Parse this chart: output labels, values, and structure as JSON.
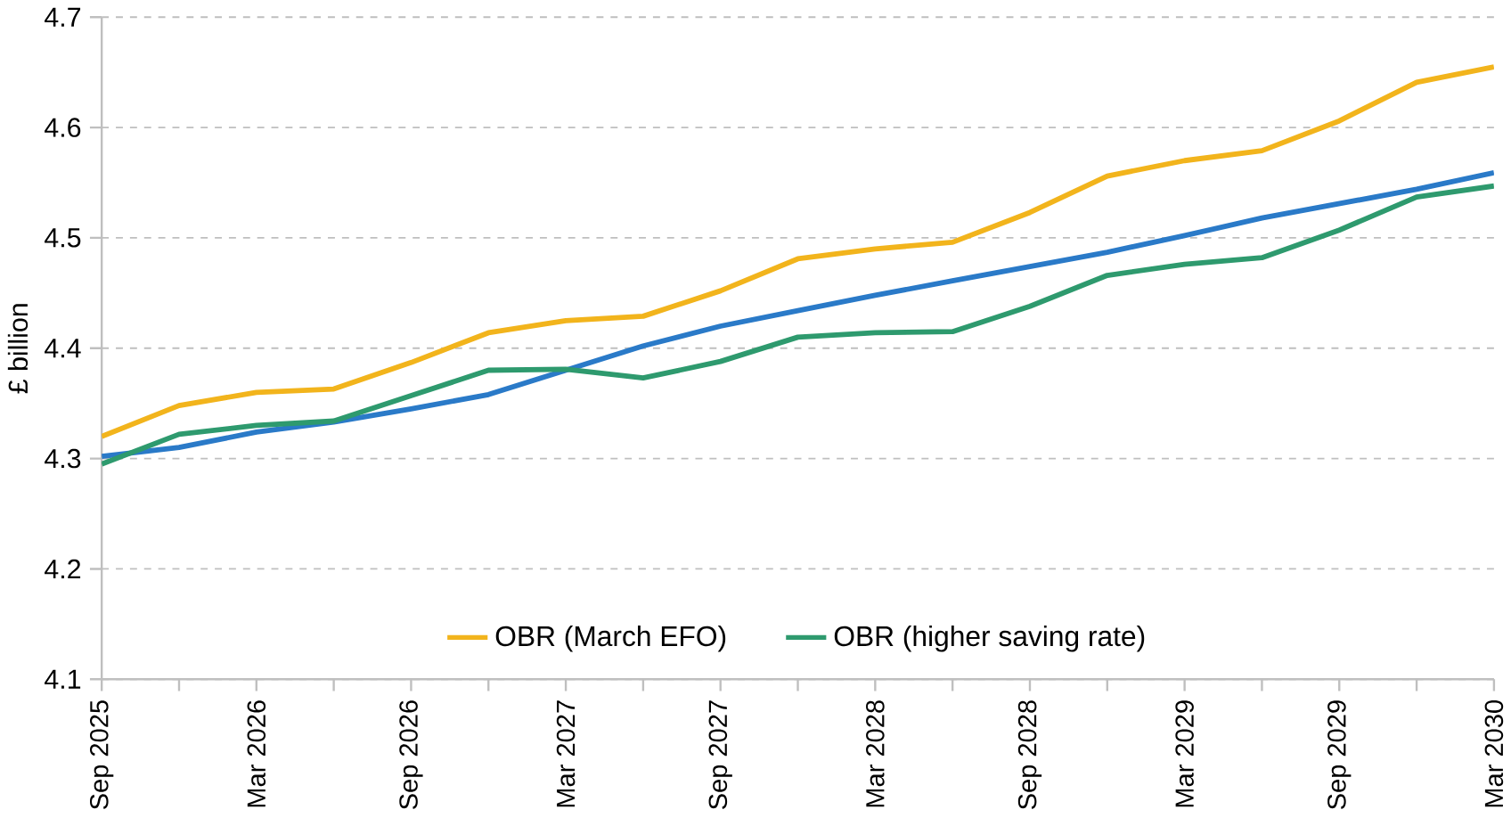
{
  "chart_data": {
    "type": "line",
    "ylabel": "£ billion",
    "categories": [
      "Sep 2025",
      null,
      "Mar 2026",
      null,
      "Sep 2026",
      null,
      "Mar 2027",
      null,
      "Sep 2027",
      null,
      "Mar 2028",
      null,
      "Sep 2028",
      null,
      "Mar 2029",
      null,
      "Sep 2029",
      null,
      "Mar 2030"
    ],
    "series": [
      {
        "color": "#2a7ac8",
        "values": [
          4.302,
          4.31,
          4.324,
          4.333,
          4.345,
          4.358,
          4.38,
          4.402,
          4.42,
          4.434,
          4.448,
          4.461,
          4.474,
          4.487,
          4.502,
          4.518,
          4.531,
          4.544,
          4.559
        ]
      },
      {
        "name": "OBR (March EFO)",
        "color": "#f2b41c",
        "values": [
          4.32,
          4.348,
          4.36,
          4.363,
          4.387,
          4.414,
          4.425,
          4.429,
          4.452,
          4.481,
          4.49,
          4.496,
          4.523,
          4.556,
          4.57,
          4.579,
          4.606,
          4.641,
          4.655
        ]
      },
      {
        "name": "OBR (higher saving rate)",
        "color": "#2e9a6e",
        "values": [
          4.295,
          4.322,
          4.33,
          4.334,
          4.357,
          4.38,
          4.381,
          4.373,
          4.388,
          4.41,
          4.414,
          4.415,
          4.438,
          4.466,
          4.476,
          4.482,
          4.507,
          4.537,
          4.547
        ]
      }
    ],
    "ylim": [
      4.1,
      4.7
    ],
    "yticks": [
      4.1,
      4.2,
      4.3,
      4.4,
      4.5,
      4.6,
      4.7
    ],
    "grid": "y",
    "legend": "bottom",
    "marker": "none",
    "line_style": "solid"
  }
}
